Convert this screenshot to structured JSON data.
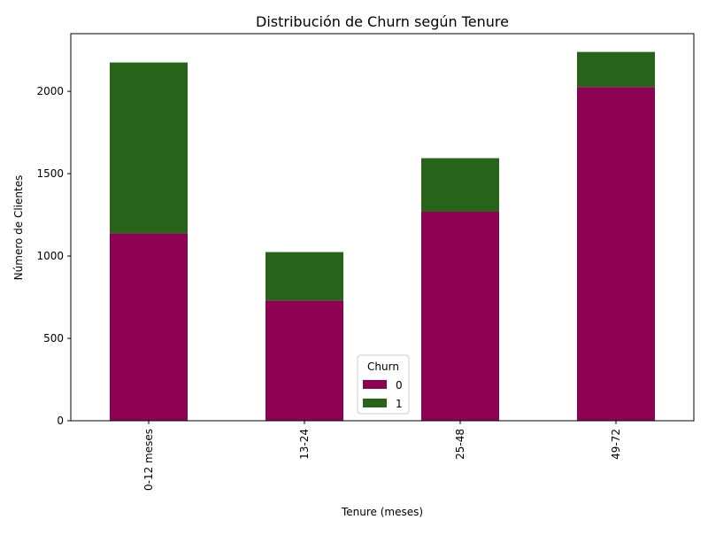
{
  "chart_data": {
    "type": "bar",
    "stacked": true,
    "title": "Distribución de Churn según Tenure",
    "xlabel": "Tenure (meses)",
    "ylabel": "Número de Clientes",
    "categories": [
      "0-12 meses",
      "13-24",
      "25-48",
      "49-72"
    ],
    "series": [
      {
        "name": "0",
        "values": [
          1138,
          730,
          1269,
          2026
        ],
        "color": "#8e0152"
      },
      {
        "name": "1",
        "values": [
          1037,
          294,
          325,
          213
        ],
        "color": "#276419"
      }
    ],
    "ylim": [
      0,
      2350
    ],
    "yticks": [
      0,
      500,
      1000,
      1500,
      2000
    ],
    "grid": false,
    "legend": {
      "title": "Churn",
      "placement": "lower-center"
    }
  }
}
